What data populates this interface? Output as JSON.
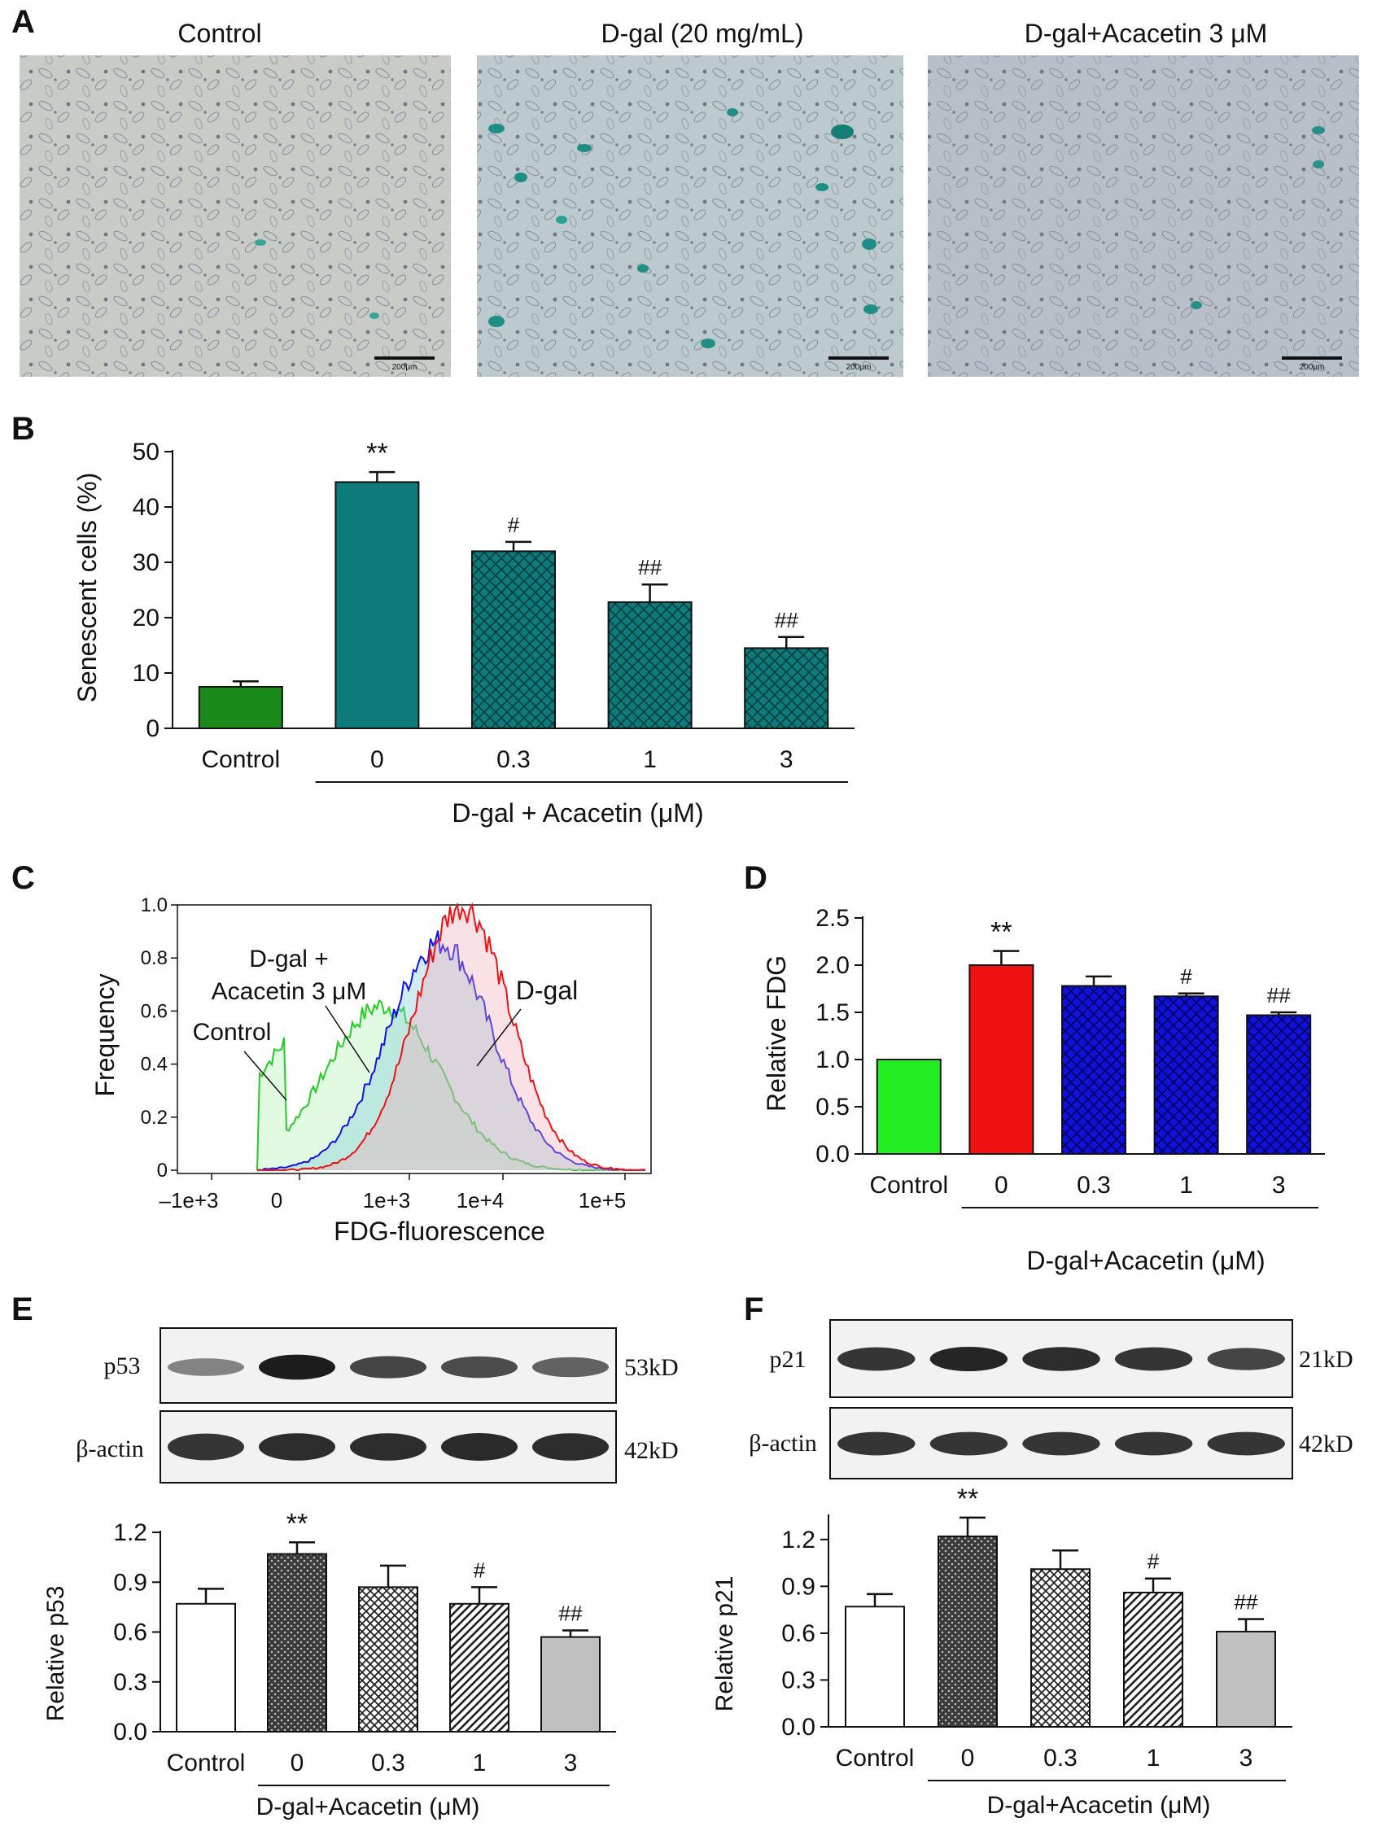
{
  "panel_letters": {
    "a": "A",
    "b": "B",
    "c": "C",
    "d": "D",
    "e": "E",
    "f": "F"
  },
  "panel_a": {
    "images": [
      {
        "title": "Control",
        "scale_label": "200μm"
      },
      {
        "title": "D-gal  (20 mg/mL)",
        "scale_label": "200μm"
      },
      {
        "title": "D-gal+Acacetin 3 μM",
        "scale_label": "200μm"
      }
    ]
  },
  "colors": {
    "b_control": "#1a8a1a",
    "b_treated": "#0d7b7b",
    "d_control": "#22ee22",
    "d_dgal": "#ee1111",
    "d_acacetin": "#1111dd",
    "c_control": "#22cc22",
    "c_acacetin": "#1111ee",
    "c_dgal": "#ee1111",
    "e_dark": "#444444",
    "e_gray": "#c0c0c0"
  },
  "chart_data": [
    {
      "id": "B",
      "type": "bar",
      "ylabel": "Senescent cells (%)",
      "ylim": [
        0,
        50
      ],
      "yticks": [
        "0",
        "10",
        "20",
        "30",
        "40",
        "50"
      ],
      "categories": [
        "Control",
        "0",
        "0.3",
        "1",
        "3"
      ],
      "values": [
        7.5,
        44.5,
        32,
        22.8,
        14.5
      ],
      "errors": [
        1,
        1.8,
        1.7,
        3.2,
        2
      ],
      "annotations": [
        "",
        "**",
        "#",
        "##",
        "##"
      ],
      "group_label": "D-gal + Acacetin (μM)",
      "fills": [
        "solid",
        "solid",
        "crosshatch",
        "crosshatch",
        "crosshatch"
      ]
    },
    {
      "id": "C",
      "type": "area",
      "xlabel": "FDG-fluorescence",
      "ylabel": "Frequency",
      "ylim": [
        0,
        1.0
      ],
      "yticks": [
        "0",
        "0.2",
        "0.4",
        "0.6",
        "0.8",
        "1.0"
      ],
      "xticks": [
        "–1e+3",
        "0",
        "1e+3",
        "1e+4",
        "1e+5"
      ],
      "series": [
        {
          "name": "Control",
          "peak_x": 250,
          "peak_y": 0.62
        },
        {
          "name": "D-gal +\nAcacetin 3 μM",
          "peak_x": 1500,
          "peak_y": 0.86
        },
        {
          "name": "D-gal",
          "peak_x": 3000,
          "peak_y": 1.0
        }
      ]
    },
    {
      "id": "D",
      "type": "bar",
      "ylabel": "Relative FDG",
      "ylim": [
        0,
        2.5
      ],
      "yticks": [
        "0.0",
        "0.5",
        "1.0",
        "1.5",
        "2.0",
        "2.5"
      ],
      "categories": [
        "Control",
        "0",
        "0.3",
        "1",
        "3"
      ],
      "values": [
        1.0,
        2.0,
        1.78,
        1.67,
        1.47
      ],
      "errors": [
        0,
        0.15,
        0.1,
        0.03,
        0.03
      ],
      "annotations": [
        "",
        "**",
        "",
        "#",
        "##"
      ],
      "group_label": "D-gal+Acacetin (μM)",
      "fills": [
        "solid",
        "solid",
        "crosshatch",
        "crosshatch",
        "crosshatch"
      ]
    },
    {
      "id": "E",
      "type": "bar",
      "ylabel": "Relative p53",
      "ylim": [
        0,
        1.2
      ],
      "yticks": [
        "0.0",
        "0.3",
        "0.6",
        "0.9",
        "1.2"
      ],
      "categories": [
        "Control",
        "0",
        "0.3",
        "1",
        "3"
      ],
      "values": [
        0.77,
        1.07,
        0.87,
        0.77,
        0.57
      ],
      "errors": [
        0.09,
        0.07,
        0.13,
        0.1,
        0.04
      ],
      "annotations": [
        "",
        "**",
        "",
        "#",
        "##"
      ],
      "group_label": "D-gal+Acacetin (μM)",
      "fills": [
        "white",
        "dotted",
        "checker",
        "diagonal",
        "gray"
      ],
      "blot": {
        "rows": [
          {
            "label": "p53",
            "size": "53kD"
          },
          {
            "label": "β-actin",
            "size": "42kD"
          }
        ]
      }
    },
    {
      "id": "F",
      "type": "bar",
      "ylabel": "Relative p21",
      "ylim": [
        0,
        1.35
      ],
      "yticks": [
        "0.0",
        "0.3",
        "0.6",
        "0.9",
        "1.2"
      ],
      "categories": [
        "Control",
        "0",
        "0.3",
        "1",
        "3"
      ],
      "values": [
        0.77,
        1.22,
        1.01,
        0.86,
        0.61
      ],
      "errors": [
        0.08,
        0.12,
        0.12,
        0.09,
        0.08
      ],
      "annotations": [
        "",
        "**",
        "",
        "#",
        "##"
      ],
      "group_label": "D-gal+Acacetin (μM)",
      "fills": [
        "white",
        "dotted",
        "checker",
        "diagonal",
        "gray"
      ],
      "blot": {
        "rows": [
          {
            "label": "p21",
            "size": "21kD"
          },
          {
            "label": "β-actin",
            "size": "42kD"
          }
        ]
      }
    }
  ]
}
